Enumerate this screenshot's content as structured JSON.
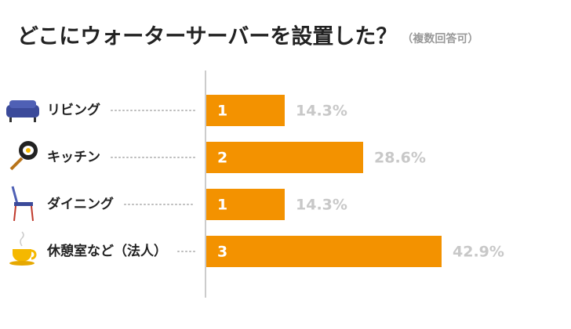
{
  "chart_data": {
    "type": "bar",
    "orientation": "horizontal",
    "title": "どこにウォーターサーバーを設置した？",
    "subtitle": "（複数回答可）",
    "categories": [
      "リビング",
      "キッチン",
      "ダイニング",
      "休憩室など（法人）"
    ],
    "values": [
      1,
      2,
      1,
      3
    ],
    "percent_labels": [
      "14.3%",
      "28.6%",
      "14.3%",
      "42.9%"
    ],
    "color": "#f39200"
  }
}
